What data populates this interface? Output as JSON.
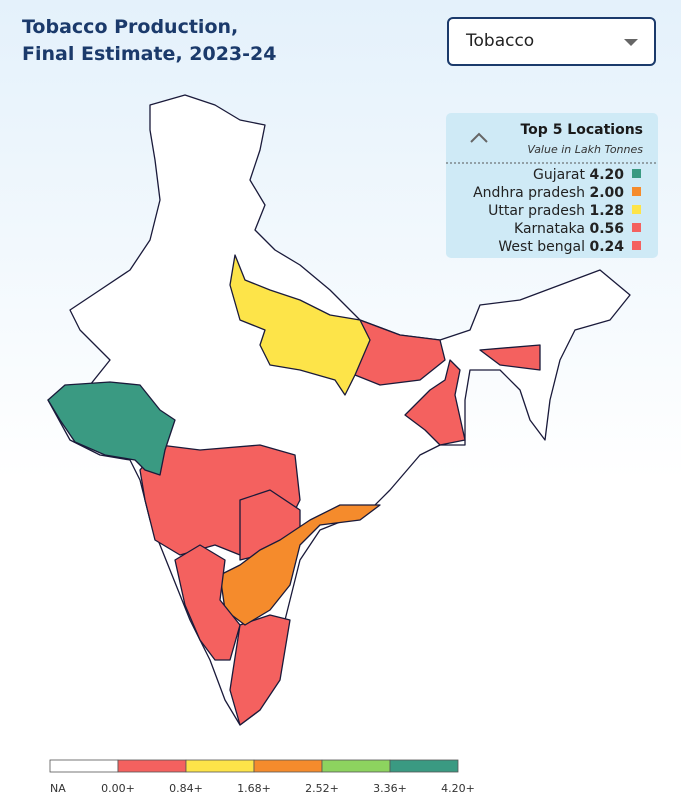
{
  "header": {
    "title_lines": [
      "Tobacco Production,",
      "Final Estimate, 2023-24"
    ]
  },
  "dropdown": {
    "selected": "Tobacco"
  },
  "top_locations": {
    "title": "Top 5 Locations",
    "subtitle": "Value in Lakh Tonnes",
    "names": [
      "Gujarat",
      "Andhra pradesh",
      "Uttar pradesh",
      "Karnataka",
      "West bengal"
    ],
    "values": [
      4.2,
      2.0,
      1.28,
      0.56,
      0.24
    ],
    "value_labels": [
      "4.20",
      "2.00",
      "1.28",
      "0.56",
      "0.24"
    ],
    "colors": [
      "#3a9a82",
      "#f58b2c",
      "#fde449",
      "#f4615f",
      "#f4615f"
    ]
  },
  "legend": {
    "labels": [
      "NA",
      "0.00+",
      "0.84+",
      "1.68+",
      "2.52+",
      "3.36+",
      "4.20+"
    ],
    "colors": [
      "#ffffff",
      "#f4615f",
      "#fde449",
      "#f58b2c",
      "#8dd35f",
      "#3a9a82"
    ]
  }
}
